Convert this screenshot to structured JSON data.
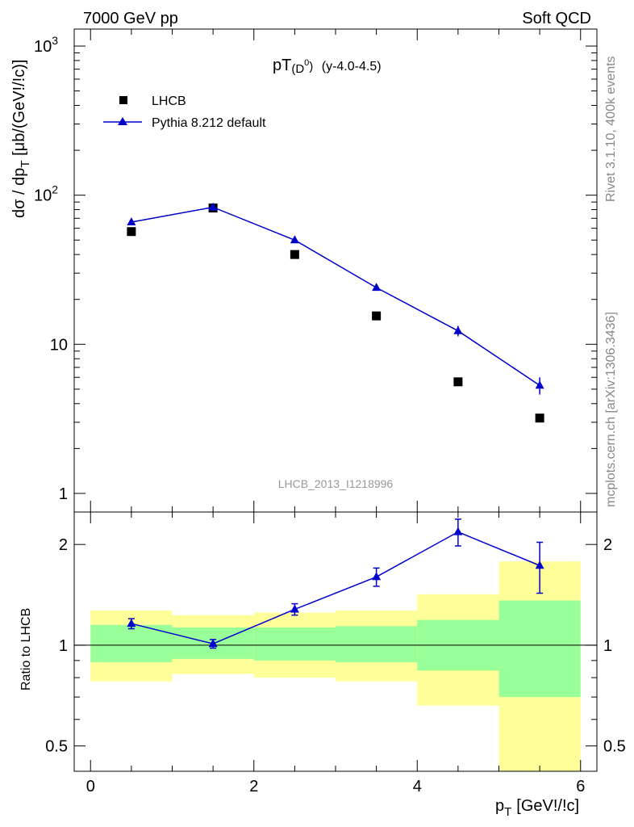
{
  "header": {
    "left": "7000 GeV pp",
    "right": "Soft QCD"
  },
  "side_labels": {
    "rivet": "Rivet 3.1.10,  400k events",
    "source": "mcplots.cern.ch [arXiv:1306.3436]"
  },
  "reference": "LHCB_2013_I1218996",
  "chart_data": [
    {
      "type": "scatter",
      "title": "pT(D0) (y-4.0-4.5)",
      "ylabel": "dσ / dp_T [μb/(GeV!/!c)]",
      "yscale": "log",
      "ylim": [
        0.75,
        1300
      ],
      "xlim": [
        -0.2,
        6.2
      ],
      "yticks": [
        "1",
        "10",
        "10^2",
        "10^3"
      ],
      "legend": {
        "position": "top-left"
      },
      "x": [
        0.5,
        1.5,
        2.5,
        3.5,
        4.5,
        5.5
      ],
      "series": [
        {
          "name": "LHCB",
          "marker": "square",
          "color": "#000000",
          "values": [
            57,
            82,
            40,
            15.5,
            5.6,
            3.2
          ]
        },
        {
          "name": "Pythia 8.212 default",
          "marker": "triangle",
          "color": "#0000cc",
          "line": true,
          "values": [
            66,
            83,
            50,
            24,
            12.3,
            5.3
          ],
          "errors": [
            1.5,
            2,
            1.5,
            1.0,
            1.0,
            0.7
          ]
        }
      ]
    },
    {
      "type": "line",
      "ylabel": "Ratio to LHCB",
      "xlabel": "p_T [GeV!/!c]",
      "yscale": "log",
      "ylim": [
        0.42,
        2.5
      ],
      "xlim": [
        -0.2,
        6.2
      ],
      "xticks": [
        "0",
        "2",
        "4",
        "6"
      ],
      "yticks": [
        "0.5",
        "1",
        "2"
      ],
      "bins": [
        [
          0,
          1
        ],
        [
          1,
          2
        ],
        [
          2,
          3
        ],
        [
          3,
          4
        ],
        [
          4,
          5
        ],
        [
          5,
          6
        ]
      ],
      "bands": {
        "green": [
          [
            0.89,
            1.15
          ],
          [
            0.91,
            1.13
          ],
          [
            0.9,
            1.13
          ],
          [
            0.89,
            1.14
          ],
          [
            0.84,
            1.19
          ],
          [
            0.7,
            1.36
          ]
        ],
        "yellow": [
          [
            0.78,
            1.27
          ],
          [
            0.82,
            1.23
          ],
          [
            0.8,
            1.25
          ],
          [
            0.78,
            1.27
          ],
          [
            0.66,
            1.42
          ],
          [
            0.42,
            1.78
          ]
        ]
      },
      "band_colors": {
        "green": "#99ff99",
        "yellow": "#ffff99"
      },
      "x": [
        0.5,
        1.5,
        2.5,
        3.5,
        4.5,
        5.5
      ],
      "series": [
        {
          "name": "Pythia 8.212 default",
          "color": "#0000cc",
          "values": [
            1.16,
            1.01,
            1.28,
            1.6,
            2.18,
            1.73
          ],
          "errors": [
            0.04,
            0.03,
            0.05,
            0.1,
            0.2,
            0.3
          ]
        }
      ]
    }
  ]
}
